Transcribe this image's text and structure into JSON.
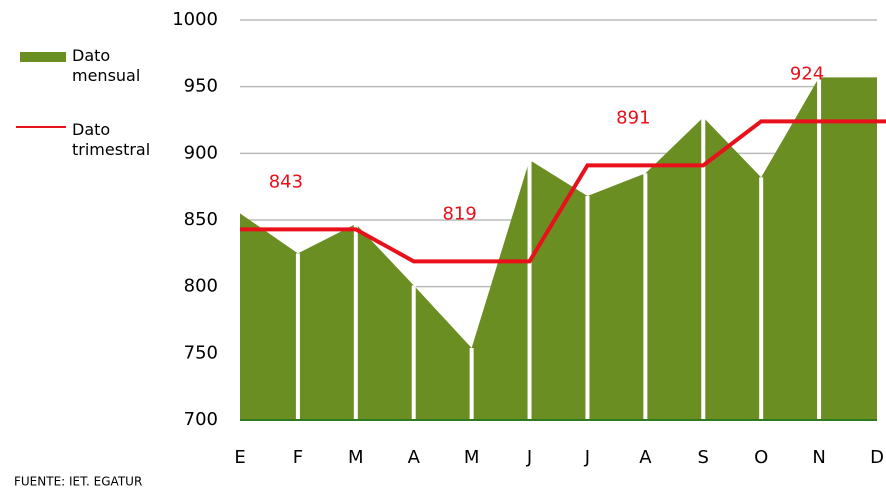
{
  "chart_data": {
    "type": "area-step",
    "categories": [
      "E",
      "F",
      "M",
      "A",
      "M",
      "J",
      "J",
      "A",
      "S",
      "O",
      "N",
      "D"
    ],
    "series": [
      {
        "name": "Dato mensual",
        "type": "area",
        "color": "#6b8e23",
        "values": [
          855,
          825,
          847,
          801,
          754,
          895,
          868,
          885,
          927,
          882,
          957,
          957
        ]
      },
      {
        "name": "Dato trimestral",
        "type": "line",
        "color": "#e8101a",
        "values": [
          843,
          843,
          843,
          819,
          819,
          819,
          891,
          891,
          891,
          924,
          924,
          924
        ],
        "value_labels": [
          null,
          "843",
          null,
          null,
          "819",
          null,
          null,
          "891",
          null,
          null,
          "924",
          null
        ]
      }
    ],
    "ylim": [
      700,
      1000
    ],
    "yticks": [
      700,
      750,
      800,
      850,
      900,
      950,
      1000
    ],
    "grid": true,
    "legend": "left",
    "source": "FUENTE: IET. EGATUR"
  }
}
